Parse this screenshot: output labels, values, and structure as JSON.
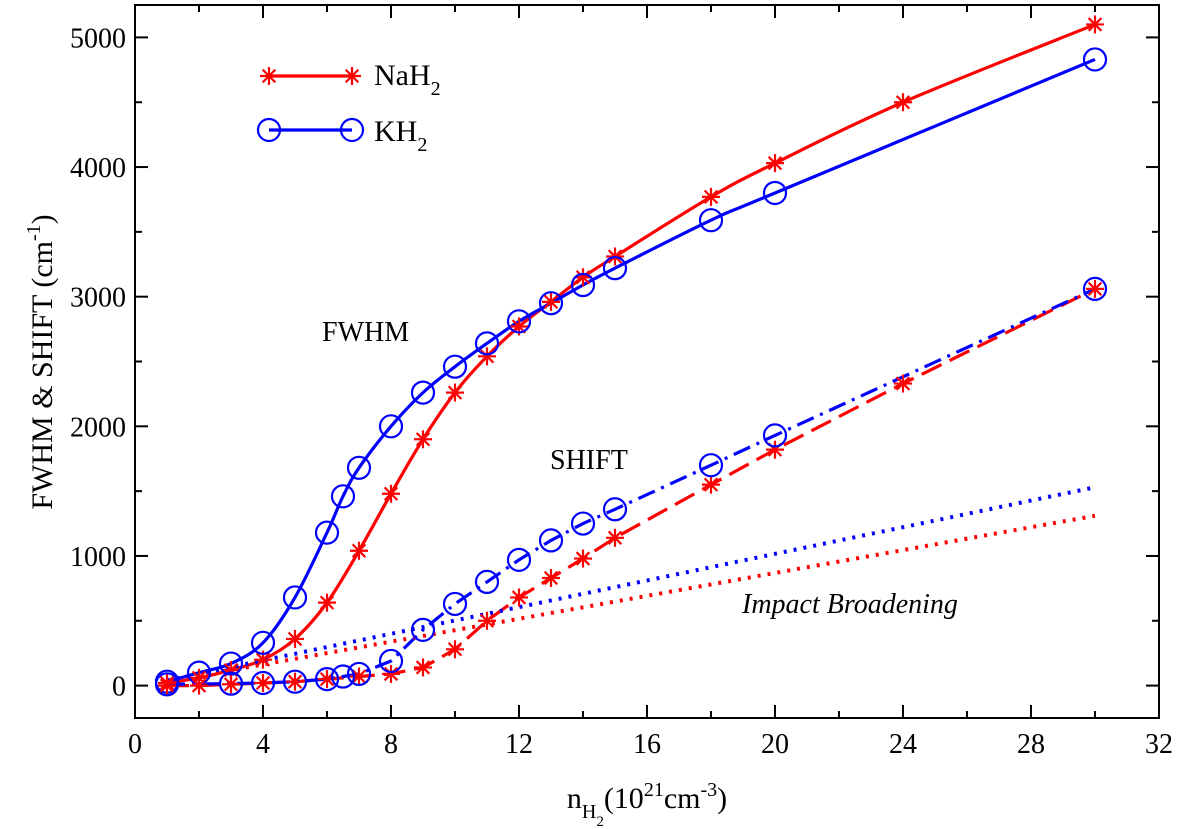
{
  "chart_data": {
    "type": "line",
    "title": "",
    "xlabel": {
      "base": "n",
      "sub": "H",
      "subsub": "2",
      "unit_open": "(10",
      "exp1": "21",
      "unit_mid": "cm",
      "exp2": "-3",
      "unit_close": ")"
    },
    "ylabel": {
      "main": "FWHM & SHIFT  (cm",
      "exp": "-1",
      "close": ")"
    },
    "xlim": [
      0,
      32
    ],
    "ylim": [
      -250,
      5250
    ],
    "xticks": [
      0,
      4,
      8,
      12,
      16,
      20,
      24,
      28,
      32
    ],
    "yticks": [
      0,
      1000,
      2000,
      3000,
      4000,
      5000
    ],
    "xtick_labels": [
      "0",
      "4",
      "8",
      "12",
      "16",
      "20",
      "24",
      "28",
      "32"
    ],
    "ytick_labels": [
      "0",
      "1000",
      "2000",
      "3000",
      "4000",
      "5000"
    ],
    "grid": false,
    "legend": {
      "location": "top-left",
      "entries": [
        {
          "base": "NaH",
          "sub": "2",
          "color": "#ff0000",
          "marker": "star"
        },
        {
          "base": "KH",
          "sub": "2",
          "color": "#0000ff",
          "marker": "circle"
        }
      ]
    },
    "annotations": {
      "fwhm": "FWHM",
      "shift": "SHIFT",
      "impact": "Impact Broadening"
    },
    "series": [
      {
        "name": "NaH2 FWHM",
        "color": "#ff0000",
        "style": "solid",
        "marker": "star",
        "x": [
          1,
          2,
          3,
          4,
          5,
          6,
          7,
          8,
          9,
          10,
          11,
          12,
          13,
          14,
          15,
          18,
          20,
          24,
          30
        ],
        "y": [
          20,
          60,
          120,
          200,
          360,
          640,
          1040,
          1480,
          1900,
          2260,
          2540,
          2770,
          2960,
          3150,
          3310,
          3770,
          4030,
          4500,
          5100
        ]
      },
      {
        "name": "KH2 FWHM",
        "color": "#0000ff",
        "style": "solid",
        "marker": "circle",
        "x": [
          1,
          2,
          3,
          4,
          5,
          6,
          6.5,
          7,
          8,
          9,
          10,
          11,
          12,
          13,
          14,
          15,
          18,
          20,
          30
        ],
        "y": [
          30,
          100,
          170,
          330,
          680,
          1180,
          1460,
          1680,
          2000,
          2260,
          2460,
          2640,
          2810,
          2950,
          3090,
          3220,
          3590,
          3800,
          4830
        ]
      },
      {
        "name": "NaH2 SHIFT",
        "color": "#ff0000",
        "style": "dashed",
        "marker": "star",
        "x": [
          1,
          2,
          3,
          4,
          5,
          6,
          7,
          8,
          9,
          10,
          11,
          12,
          13,
          14,
          15,
          18,
          20,
          24,
          30
        ],
        "y": [
          0,
          0,
          10,
          20,
          30,
          50,
          70,
          90,
          140,
          280,
          500,
          680,
          830,
          980,
          1140,
          1550,
          1820,
          2330,
          3060
        ]
      },
      {
        "name": "KH2 SHIFT",
        "color": "#0000ff",
        "style": "dashdot",
        "marker": "circle",
        "x": [
          1,
          3,
          4,
          5,
          6,
          6.5,
          7,
          8,
          9,
          10,
          11,
          12,
          13,
          14,
          15,
          18,
          20,
          30
        ],
        "y": [
          10,
          15,
          20,
          30,
          50,
          70,
          90,
          190,
          430,
          630,
          800,
          970,
          1120,
          1250,
          1360,
          1700,
          1930,
          3060
        ]
      },
      {
        "name": "NaH2 Impact Broadening",
        "color": "#ff0000",
        "style": "dotted",
        "marker": "none",
        "x": [
          1,
          30
        ],
        "y": [
          30,
          1310
        ]
      },
      {
        "name": "KH2 Impact Broadening",
        "color": "#0000ff",
        "style": "dotted",
        "marker": "none",
        "x": [
          1,
          30
        ],
        "y": [
          40,
          1530
        ]
      }
    ]
  }
}
